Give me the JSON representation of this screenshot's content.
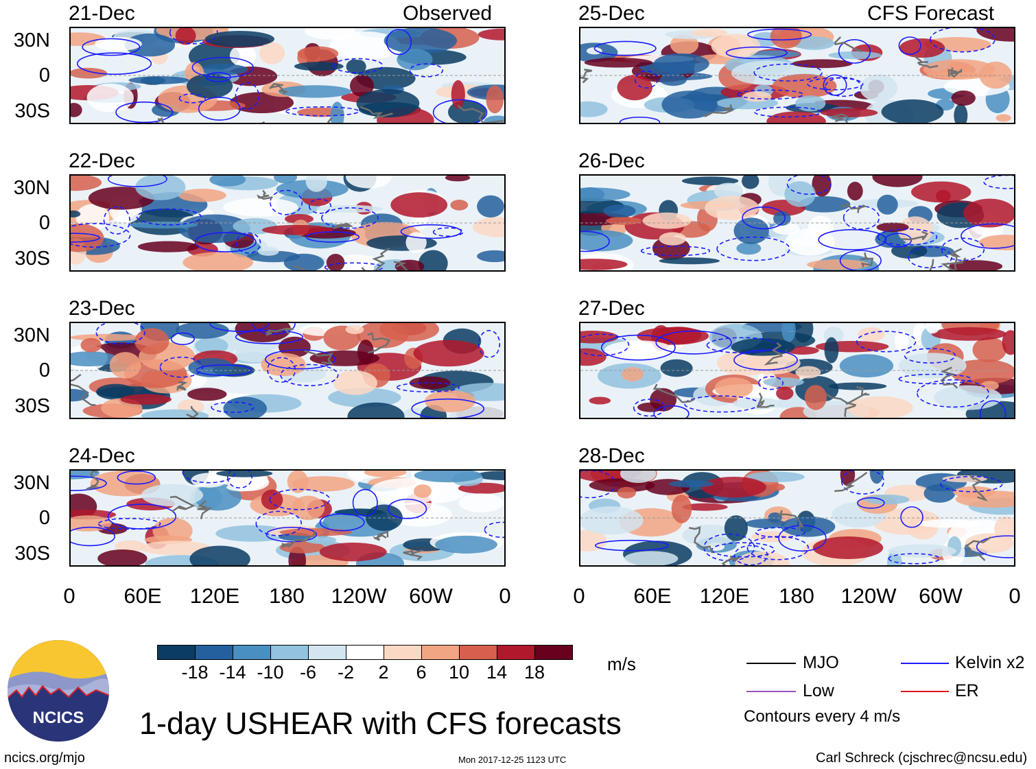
{
  "headers": {
    "left_title": "Observed",
    "right_title": "CFS Forecast"
  },
  "chart_data": {
    "type": "heatmap",
    "title": "1-day USHEAR with CFS forecasts",
    "units": "m/s",
    "lat_ticks": [
      "30N",
      "0",
      "30S"
    ],
    "lon_ticks": [
      "0",
      "60E",
      "120E",
      "180",
      "120W",
      "60W",
      "0"
    ],
    "lat_range": [
      -40,
      40
    ],
    "lon_range": [
      0,
      360
    ],
    "colorbar": {
      "levels": [
        "-18",
        "-14",
        "-10",
        "-6",
        "-2",
        "2",
        "6",
        "10",
        "14",
        "18"
      ],
      "colors": [
        "#0b3c63",
        "#24609d",
        "#4a8fc1",
        "#92c2de",
        "#d2e5f0",
        "#ffffff",
        "#fbd8c4",
        "#f2a582",
        "#d6604d",
        "#b1182b",
        "#67001f"
      ]
    },
    "panels": [
      {
        "date": "21-Dec",
        "source": "Observed"
      },
      {
        "date": "22-Dec",
        "source": "Observed"
      },
      {
        "date": "23-Dec",
        "source": "Observed"
      },
      {
        "date": "24-Dec",
        "source": "Observed"
      },
      {
        "date": "25-Dec",
        "source": "CFS Forecast"
      },
      {
        "date": "26-Dec",
        "source": "CFS Forecast"
      },
      {
        "date": "27-Dec",
        "source": "CFS Forecast"
      },
      {
        "date": "28-Dec",
        "source": "CFS Forecast"
      }
    ],
    "contour_legend": [
      {
        "label": "MJO",
        "color": "#000000"
      },
      {
        "label": "Kelvin x2",
        "color": "#1a1aff"
      },
      {
        "label": "Low",
        "color": "#9955bb"
      },
      {
        "label": "ER",
        "color": "#e0141e"
      }
    ],
    "contour_note": "Contours every 4 m/s"
  },
  "logo": {
    "text": "NCICS"
  },
  "footer": {
    "website": "ncics.org/mjo",
    "timestamp": "Mon 2017-12-25 1123 UTC",
    "credit": "Carl Schreck (cjschrec@ncsu.edu)"
  }
}
